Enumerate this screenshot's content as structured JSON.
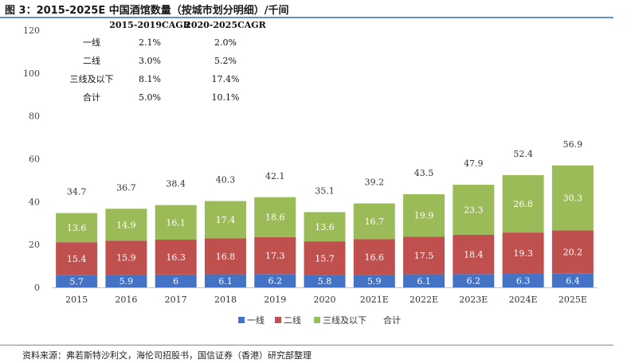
{
  "title": "图 3：2015-2025E 中国酒馆数量（按城市划分明细）/千间",
  "source": "资料来源：弗若斯特沙利文，海伦司招股书，国信证券（香港）研究部整理",
  "cagr_table": {
    "headers": [
      "2015-2019CAGR",
      "2020-2025CAGR"
    ],
    "rows": [
      {
        "label": "一线",
        "values": [
          "2.1%",
          "2.0%"
        ]
      },
      {
        "label": "二线",
        "values": [
          "3.0%",
          "5.2%"
        ]
      },
      {
        "label": "三线及以下",
        "values": [
          "8.1%",
          "17.4%"
        ]
      },
      {
        "label": "合计",
        "values": [
          "5.0%",
          "10.1%"
        ]
      }
    ]
  },
  "colors": {
    "tier1": "#4472c4",
    "tier2": "#c0504d",
    "tier3": "#9bbb59",
    "axis": "#bfbfbf"
  },
  "chart_data": {
    "type": "bar",
    "stacked": true,
    "categories": [
      "2015",
      "2016",
      "2017",
      "2018",
      "2019",
      "2020",
      "2021E",
      "2022E",
      "2023E",
      "2024E",
      "2025E"
    ],
    "series": [
      {
        "name": "一线",
        "values": [
          5.7,
          5.9,
          6,
          6.1,
          6.2,
          5.8,
          5.9,
          6.1,
          6.2,
          6.3,
          6.4
        ],
        "labels": [
          "5.7",
          "5.9",
          "6",
          "6.1",
          "6.2",
          "5.8",
          "5.9",
          "6.1",
          "6.2",
          "6.3",
          "6.4"
        ]
      },
      {
        "name": "二线",
        "values": [
          15.4,
          15.9,
          16.3,
          16.8,
          17.3,
          15.7,
          16.6,
          17.5,
          18.4,
          19.3,
          20.2
        ],
        "labels": [
          "15.4",
          "15.9",
          "16.3",
          "16.8",
          "17.3",
          "15.7",
          "16.6",
          "17.5",
          "18.4",
          "19.3",
          "20.2"
        ]
      },
      {
        "name": "三线及以下",
        "values": [
          13.6,
          14.9,
          16.1,
          17.4,
          18.6,
          13.6,
          16.7,
          19.9,
          23.3,
          26.8,
          30.3
        ],
        "labels": [
          "13.6",
          "14.9",
          "16.1",
          "17.4",
          "18.6",
          "13.6",
          "16.7",
          "19.9",
          "23.3",
          "26.8",
          "30.3"
        ]
      }
    ],
    "totals": {
      "name": "合计",
      "values": [
        34.7,
        36.7,
        38.4,
        40.3,
        42.1,
        35.1,
        39.2,
        43.5,
        47.9,
        52.4,
        56.9
      ],
      "labels": [
        "34.7",
        "36.7",
        "38.4",
        "40.3",
        "42.1",
        "35.1",
        "39.2",
        "43.5",
        "47.9",
        "52.4",
        "56.9"
      ]
    },
    "ylim": [
      0,
      120
    ],
    "yticks": [
      "0",
      "20",
      "40",
      "60",
      "80",
      "100",
      "120"
    ],
    "ytick_values": [
      0,
      20,
      40,
      60,
      80,
      100,
      120
    ],
    "legend": [
      "一线",
      "二线",
      "三线及以下",
      "合计"
    ],
    "legend_position": "bottom"
  }
}
